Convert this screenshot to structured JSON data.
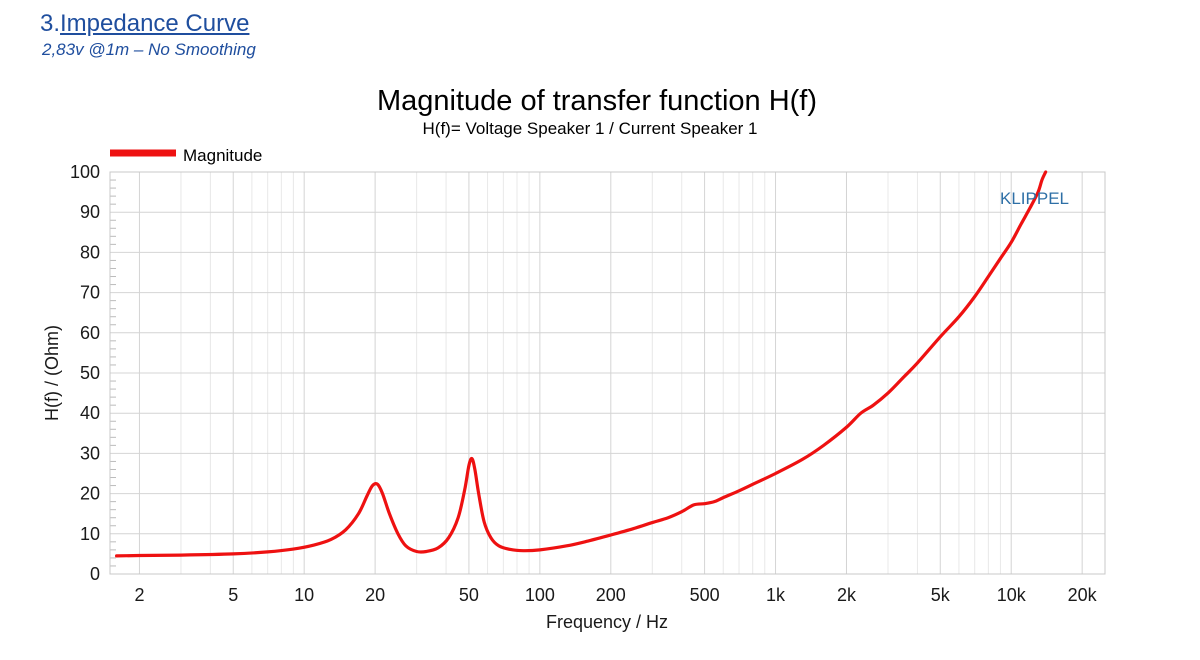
{
  "section": {
    "number": "3.",
    "title": "Impedance Curve",
    "subtitle": "2,83v @1m – No Smoothing"
  },
  "colors": {
    "heading": "#1f4e9e",
    "series": "#ee1111",
    "watermark": "#2e6fa6",
    "grid_major": "#d4d4d4",
    "grid_minor": "#e8e8e8"
  },
  "chart_data": {
    "type": "line",
    "title": "Magnitude of transfer function H(f)",
    "subtitle": "H(f)= Voltage Speaker 1 / Current Speaker 1",
    "xlabel": "Frequency / Hz",
    "ylabel": "H(f) / (Ohm)",
    "x_scale": "log",
    "xlim": [
      1.5,
      25000
    ],
    "ylim": [
      0,
      100
    ],
    "grid": true,
    "legend_position": "top-left",
    "watermark": "KLIPPEL",
    "x_ticks": [
      {
        "value": 2,
        "label": "2"
      },
      {
        "value": 5,
        "label": "5"
      },
      {
        "value": 10,
        "label": "10"
      },
      {
        "value": 20,
        "label": "20"
      },
      {
        "value": 50,
        "label": "50"
      },
      {
        "value": 100,
        "label": "100"
      },
      {
        "value": 200,
        "label": "200"
      },
      {
        "value": 500,
        "label": "500"
      },
      {
        "value": 1000,
        "label": "1k"
      },
      {
        "value": 2000,
        "label": "2k"
      },
      {
        "value": 5000,
        "label": "5k"
      },
      {
        "value": 10000,
        "label": "10k"
      },
      {
        "value": 20000,
        "label": "20k"
      }
    ],
    "y_ticks": [
      {
        "value": 0,
        "label": "0"
      },
      {
        "value": 10,
        "label": "10"
      },
      {
        "value": 20,
        "label": "20"
      },
      {
        "value": 30,
        "label": "30"
      },
      {
        "value": 40,
        "label": "40"
      },
      {
        "value": 50,
        "label": "50"
      },
      {
        "value": 60,
        "label": "60"
      },
      {
        "value": 70,
        "label": "70"
      },
      {
        "value": 80,
        "label": "80"
      },
      {
        "value": 90,
        "label": "90"
      },
      {
        "value": 100,
        "label": "100"
      }
    ],
    "series": [
      {
        "name": "Magnitude",
        "color": "#ee1111",
        "points": [
          [
            1.6,
            4.5
          ],
          [
            2,
            4.6
          ],
          [
            3,
            4.7
          ],
          [
            5,
            5.0
          ],
          [
            7,
            5.5
          ],
          [
            9,
            6.2
          ],
          [
            11,
            7.2
          ],
          [
            13,
            8.6
          ],
          [
            15,
            11
          ],
          [
            17,
            15
          ],
          [
            18.5,
            19.5
          ],
          [
            19.5,
            22
          ],
          [
            20.5,
            22.3
          ],
          [
            21.5,
            20
          ],
          [
            23,
            15
          ],
          [
            25,
            10
          ],
          [
            27,
            7
          ],
          [
            30,
            5.6
          ],
          [
            33,
            5.6
          ],
          [
            37,
            6.5
          ],
          [
            41,
            9
          ],
          [
            45,
            14
          ],
          [
            48,
            21
          ],
          [
            50,
            27
          ],
          [
            51.5,
            28.7
          ],
          [
            53,
            26
          ],
          [
            55,
            20
          ],
          [
            58,
            13
          ],
          [
            62,
            9
          ],
          [
            67,
            7
          ],
          [
            75,
            6.1
          ],
          [
            85,
            5.8
          ],
          [
            100,
            6.0
          ],
          [
            130,
            7.0
          ],
          [
            160,
            8.2
          ],
          [
            200,
            9.7
          ],
          [
            250,
            11.3
          ],
          [
            300,
            12.8
          ],
          [
            350,
            14.0
          ],
          [
            400,
            15.5
          ],
          [
            450,
            17.2
          ],
          [
            500,
            17.5
          ],
          [
            550,
            18.0
          ],
          [
            600,
            19.0
          ],
          [
            700,
            20.7
          ],
          [
            800,
            22.3
          ],
          [
            1000,
            25.0
          ],
          [
            1300,
            28.5
          ],
          [
            1600,
            32
          ],
          [
            2000,
            36.5
          ],
          [
            2300,
            40
          ],
          [
            2600,
            42
          ],
          [
            3000,
            45
          ],
          [
            3500,
            49
          ],
          [
            4000,
            52.5
          ],
          [
            5000,
            59
          ],
          [
            6000,
            64
          ],
          [
            7000,
            69
          ],
          [
            8000,
            74
          ],
          [
            9000,
            78.5
          ],
          [
            10000,
            82.5
          ],
          [
            11000,
            87
          ],
          [
            12000,
            91
          ],
          [
            13000,
            95
          ],
          [
            13500,
            98
          ],
          [
            14000,
            100
          ]
        ]
      }
    ]
  }
}
